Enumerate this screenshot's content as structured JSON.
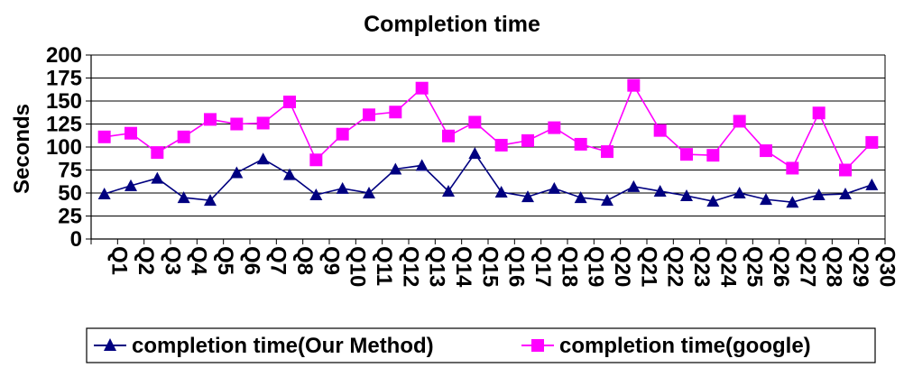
{
  "chart_data": {
    "type": "line",
    "title": "Completion time",
    "xlabel": "",
    "ylabel": "Seconds",
    "ylim": [
      0,
      200
    ],
    "yticks": [
      0,
      25,
      50,
      75,
      100,
      125,
      150,
      175,
      200
    ],
    "grid": true,
    "legend_position": "bottom",
    "categories": [
      "Q1",
      "Q2",
      "Q3",
      "Q4",
      "Q5",
      "Q6",
      "Q7",
      "Q8",
      "Q9",
      "Q10",
      "Q11",
      "Q12",
      "Q13",
      "Q14",
      "Q15",
      "Q16",
      "Q17",
      "Q18",
      "Q19",
      "Q20",
      "Q21",
      "Q22",
      "Q23",
      "Q24",
      "Q25",
      "Q26",
      "Q27",
      "Q28",
      "Q29",
      "Q30"
    ],
    "series": [
      {
        "name": "completion time(Our Method)",
        "color": "#000080",
        "marker": "triangle",
        "values": [
          49,
          58,
          66,
          45,
          42,
          72,
          87,
          70,
          48,
          55,
          50,
          76,
          80,
          52,
          93,
          51,
          46,
          55,
          45,
          42,
          57,
          52,
          47,
          41,
          50,
          43,
          40,
          48,
          49,
          59
        ]
      },
      {
        "name": "completion time(google)",
        "color": "#ff00ff",
        "marker": "square",
        "values": [
          111,
          115,
          94,
          111,
          130,
          125,
          126,
          149,
          86,
          114,
          135,
          138,
          164,
          112,
          127,
          102,
          107,
          121,
          103,
          95,
          167,
          118,
          92,
          91,
          128,
          96,
          77,
          137,
          75,
          105
        ]
      }
    ]
  }
}
